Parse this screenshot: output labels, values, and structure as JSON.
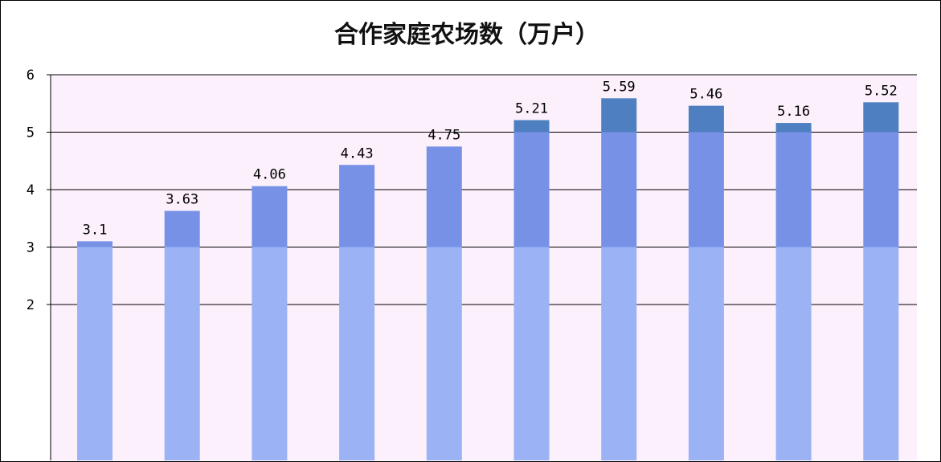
{
  "chart_data": {
    "type": "bar",
    "title": "合作家庭农场数（万户）",
    "xlabel": "",
    "ylabel": "",
    "ylim": [
      0,
      6
    ],
    "yticks": [
      "2",
      "3",
      "4",
      "5",
      "6"
    ],
    "grid": true,
    "values": [
      3.1,
      3.63,
      4.06,
      4.43,
      4.75,
      5.21,
      5.59,
      5.46,
      5.16,
      5.52
    ],
    "value_labels": [
      "3.1",
      "3.63",
      "4.06",
      "4.43",
      "4.75",
      "5.21",
      "5.59",
      "5.46",
      "5.16",
      "5.52"
    ]
  },
  "colors": {
    "plot_background": "#fbf0fb",
    "bar_light": "#9bb2f5",
    "bar_mid": "#7791e6",
    "bar_top": "#4e7fc0",
    "gridline": "#000000"
  }
}
